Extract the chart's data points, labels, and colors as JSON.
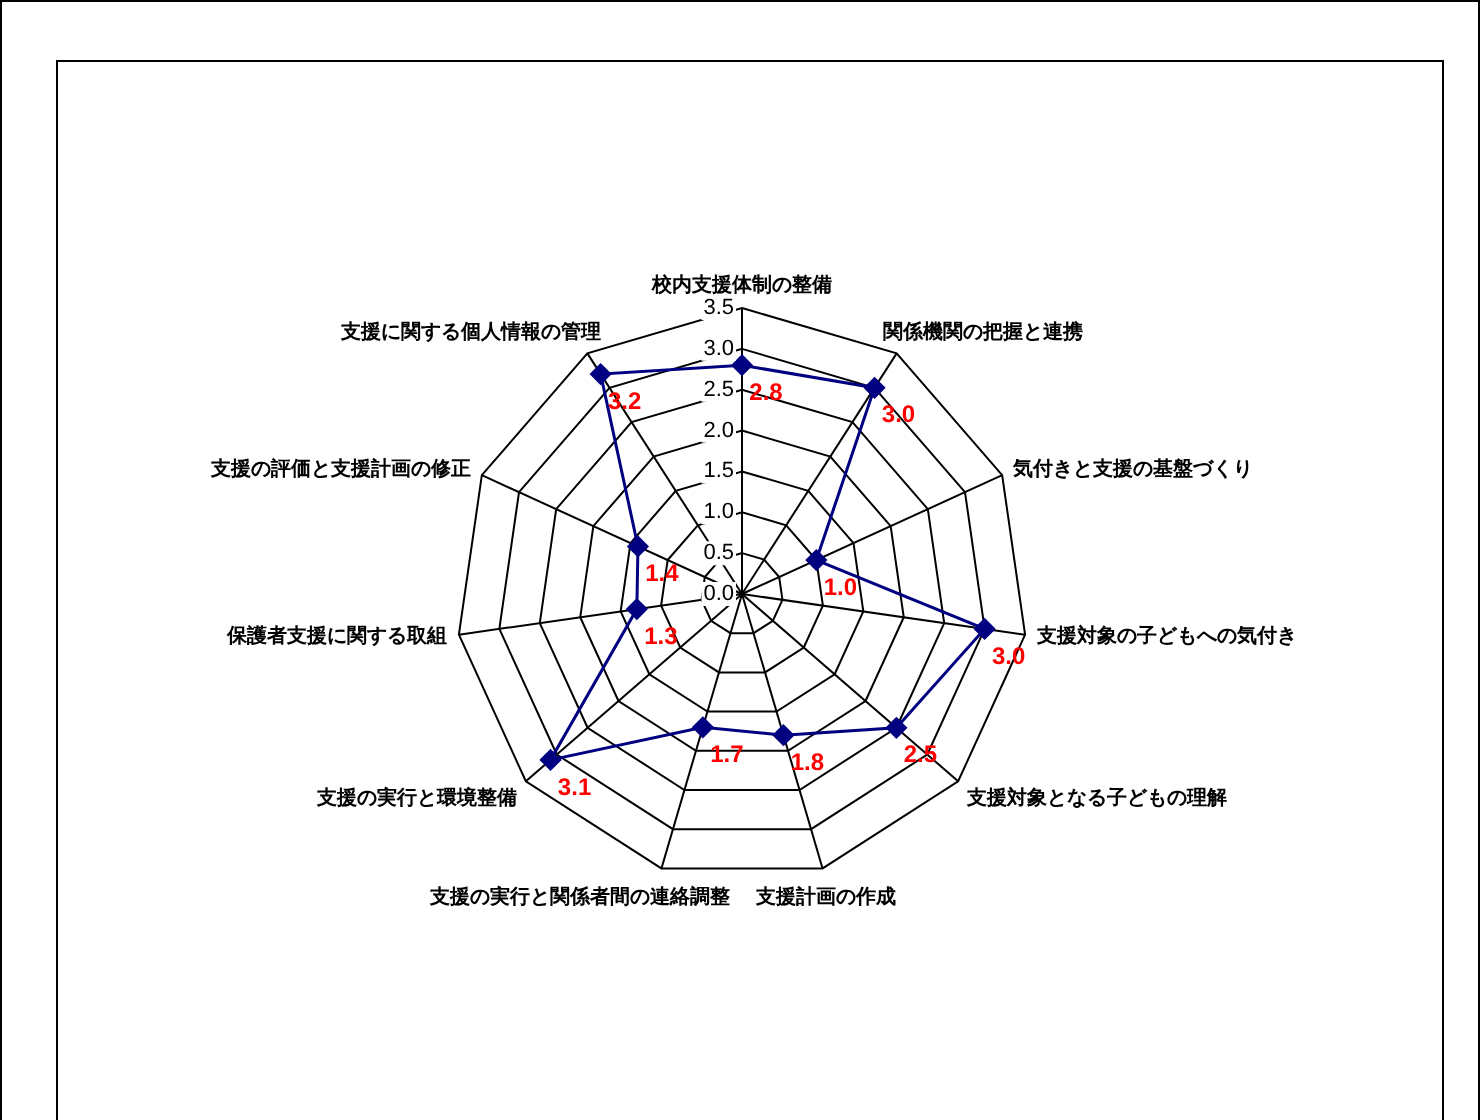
{
  "chart_data": {
    "type": "radar",
    "categories": [
      "校内支援体制の整備",
      "関係機関の把握と連携",
      "気付きと支援の基盤づくり",
      "支援対象の子どもへの気付き",
      "支援対象となる子どもの理解",
      "支援計画の作成",
      "支援の実行と関係者間の連絡調整",
      "支援の実行と環境整備",
      "保護者支援に関する取組",
      "支援の評価と支援計画の修正",
      "支援に関する個人情報の管理"
    ],
    "series": [
      {
        "color": "#000080",
        "values": [
          2.8,
          3.0,
          1.0,
          3.0,
          2.5,
          1.8,
          1.7,
          3.1,
          1.3,
          1.4,
          3.2
        ],
        "value_labels": [
          "2.8",
          "3.0",
          "1.0",
          "3.0",
          "2.5",
          "1.8",
          "1.7",
          "3.1",
          "1.3",
          "1.4",
          "3.2"
        ]
      }
    ],
    "ylim": [
      0,
      3.5
    ],
    "yticks": [
      {
        "value": 0,
        "label": "0.0"
      },
      {
        "value": 0.5,
        "label": "0.5"
      },
      {
        "value": 1,
        "label": "1.0"
      },
      {
        "value": 1.5,
        "label": "1.5"
      },
      {
        "value": 2,
        "label": "2.0"
      },
      {
        "value": 2.5,
        "label": "2.5"
      },
      {
        "value": 3,
        "label": "3.0"
      },
      {
        "value": 3.5,
        "label": "3.5"
      }
    ],
    "grid": true,
    "marker": "diamond",
    "legend": false
  }
}
